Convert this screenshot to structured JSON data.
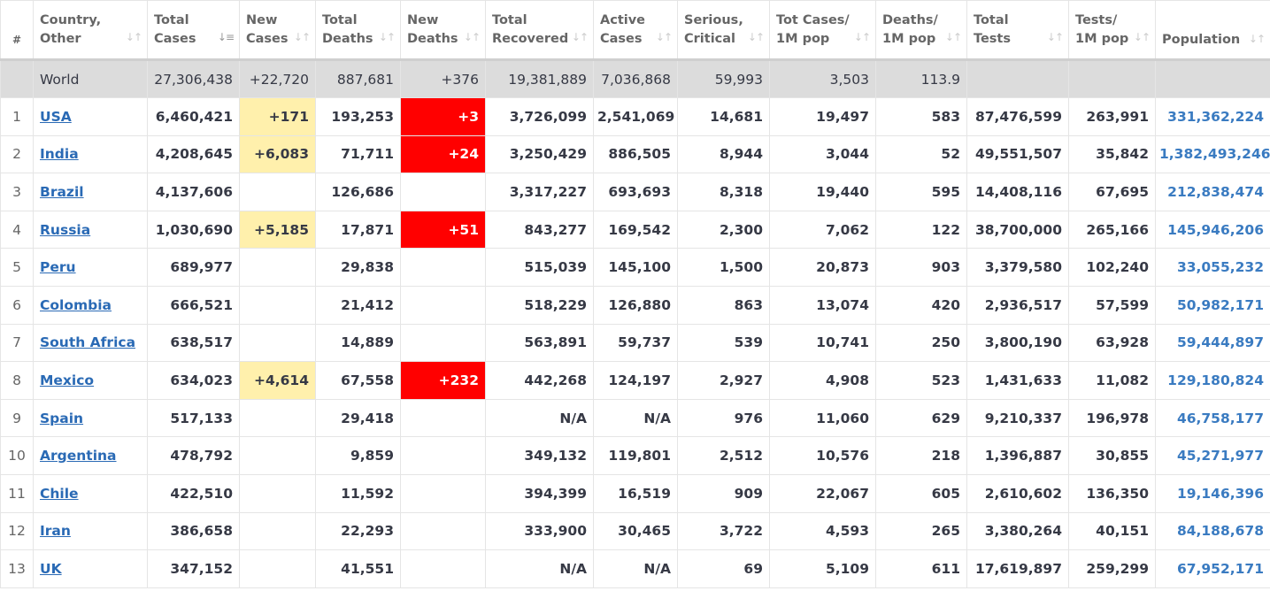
{
  "headers": {
    "num": "#",
    "country": [
      "Country,",
      "Other"
    ],
    "total_cases": [
      "Total",
      "Cases"
    ],
    "new_cases": [
      "New",
      "Cases"
    ],
    "total_deaths": [
      "Total",
      "Deaths"
    ],
    "new_deaths": [
      "New",
      "Deaths"
    ],
    "total_recovered": [
      "Total",
      "Recovered"
    ],
    "active_cases": [
      "Active",
      "Cases"
    ],
    "serious": [
      "Serious,",
      "Critical"
    ],
    "tot_cases_1m": [
      "Tot Cases/",
      "1M pop"
    ],
    "deaths_1m": [
      "Deaths/",
      "1M pop"
    ],
    "total_tests": [
      "Total",
      "Tests"
    ],
    "tests_1m": [
      "Tests/",
      "1M pop"
    ],
    "population": [
      "Population",
      ""
    ]
  },
  "world": {
    "country": "World",
    "total_cases": "27,306,438",
    "new_cases": "+22,720",
    "total_deaths": "887,681",
    "new_deaths": "+376",
    "total_recovered": "19,381,889",
    "active_cases": "7,036,868",
    "serious": "59,993",
    "tot_cases_1m": "3,503",
    "deaths_1m": "113.9",
    "total_tests": "",
    "tests_1m": "",
    "population": ""
  },
  "rows": [
    {
      "rank": "1",
      "country": "USA",
      "total_cases": "6,460,421",
      "new_cases": "+171",
      "total_deaths": "193,253",
      "new_deaths": "+3",
      "total_recovered": "3,726,099",
      "active_cases": "2,541,069",
      "serious": "14,681",
      "tot_cases_1m": "19,497",
      "deaths_1m": "583",
      "total_tests": "87,476,599",
      "tests_1m": "263,991",
      "population": "331,362,224"
    },
    {
      "rank": "2",
      "country": "India",
      "total_cases": "4,208,645",
      "new_cases": "+6,083",
      "total_deaths": "71,711",
      "new_deaths": "+24",
      "total_recovered": "3,250,429",
      "active_cases": "886,505",
      "serious": "8,944",
      "tot_cases_1m": "3,044",
      "deaths_1m": "52",
      "total_tests": "49,551,507",
      "tests_1m": "35,842",
      "population": "1,382,493,246"
    },
    {
      "rank": "3",
      "country": "Brazil",
      "total_cases": "4,137,606",
      "new_cases": "",
      "total_deaths": "126,686",
      "new_deaths": "",
      "total_recovered": "3,317,227",
      "active_cases": "693,693",
      "serious": "8,318",
      "tot_cases_1m": "19,440",
      "deaths_1m": "595",
      "total_tests": "14,408,116",
      "tests_1m": "67,695",
      "population": "212,838,474"
    },
    {
      "rank": "4",
      "country": "Russia",
      "total_cases": "1,030,690",
      "new_cases": "+5,185",
      "total_deaths": "17,871",
      "new_deaths": "+51",
      "total_recovered": "843,277",
      "active_cases": "169,542",
      "serious": "2,300",
      "tot_cases_1m": "7,062",
      "deaths_1m": "122",
      "total_tests": "38,700,000",
      "tests_1m": "265,166",
      "population": "145,946,206"
    },
    {
      "rank": "5",
      "country": "Peru",
      "total_cases": "689,977",
      "new_cases": "",
      "total_deaths": "29,838",
      "new_deaths": "",
      "total_recovered": "515,039",
      "active_cases": "145,100",
      "serious": "1,500",
      "tot_cases_1m": "20,873",
      "deaths_1m": "903",
      "total_tests": "3,379,580",
      "tests_1m": "102,240",
      "population": "33,055,232"
    },
    {
      "rank": "6",
      "country": "Colombia",
      "total_cases": "666,521",
      "new_cases": "",
      "total_deaths": "21,412",
      "new_deaths": "",
      "total_recovered": "518,229",
      "active_cases": "126,880",
      "serious": "863",
      "tot_cases_1m": "13,074",
      "deaths_1m": "420",
      "total_tests": "2,936,517",
      "tests_1m": "57,599",
      "population": "50,982,171"
    },
    {
      "rank": "7",
      "country": "South Africa",
      "total_cases": "638,517",
      "new_cases": "",
      "total_deaths": "14,889",
      "new_deaths": "",
      "total_recovered": "563,891",
      "active_cases": "59,737",
      "serious": "539",
      "tot_cases_1m": "10,741",
      "deaths_1m": "250",
      "total_tests": "3,800,190",
      "tests_1m": "63,928",
      "population": "59,444,897"
    },
    {
      "rank": "8",
      "country": "Mexico",
      "total_cases": "634,023",
      "new_cases": "+4,614",
      "total_deaths": "67,558",
      "new_deaths": "+232",
      "total_recovered": "442,268",
      "active_cases": "124,197",
      "serious": "2,927",
      "tot_cases_1m": "4,908",
      "deaths_1m": "523",
      "total_tests": "1,431,633",
      "tests_1m": "11,082",
      "population": "129,180,824"
    },
    {
      "rank": "9",
      "country": "Spain",
      "total_cases": "517,133",
      "new_cases": "",
      "total_deaths": "29,418",
      "new_deaths": "",
      "total_recovered": "N/A",
      "active_cases": "N/A",
      "serious": "976",
      "tot_cases_1m": "11,060",
      "deaths_1m": "629",
      "total_tests": "9,210,337",
      "tests_1m": "196,978",
      "population": "46,758,177"
    },
    {
      "rank": "10",
      "country": "Argentina",
      "total_cases": "478,792",
      "new_cases": "",
      "total_deaths": "9,859",
      "new_deaths": "",
      "total_recovered": "349,132",
      "active_cases": "119,801",
      "serious": "2,512",
      "tot_cases_1m": "10,576",
      "deaths_1m": "218",
      "total_tests": "1,396,887",
      "tests_1m": "30,855",
      "population": "45,271,977"
    },
    {
      "rank": "11",
      "country": "Chile",
      "total_cases": "422,510",
      "new_cases": "",
      "total_deaths": "11,592",
      "new_deaths": "",
      "total_recovered": "394,399",
      "active_cases": "16,519",
      "serious": "909",
      "tot_cases_1m": "22,067",
      "deaths_1m": "605",
      "total_tests": "2,610,602",
      "tests_1m": "136,350",
      "population": "19,146,396"
    },
    {
      "rank": "12",
      "country": "Iran",
      "total_cases": "386,658",
      "new_cases": "",
      "total_deaths": "22,293",
      "new_deaths": "",
      "total_recovered": "333,900",
      "active_cases": "30,465",
      "serious": "3,722",
      "tot_cases_1m": "4,593",
      "deaths_1m": "265",
      "total_tests": "3,380,264",
      "tests_1m": "40,151",
      "population": "84,188,678"
    },
    {
      "rank": "13",
      "country": "UK",
      "total_cases": "347,152",
      "new_cases": "",
      "total_deaths": "41,551",
      "new_deaths": "",
      "total_recovered": "N/A",
      "active_cases": "N/A",
      "serious": "69",
      "tot_cases_1m": "5,109",
      "deaths_1m": "611",
      "total_tests": "17,619,897",
      "tests_1m": "259,299",
      "population": "67,952,171"
    }
  ],
  "colors": {
    "new_cases_highlight": "#fff0ac",
    "new_deaths_highlight": "#ff0000",
    "world_row_bg": "#dcdcdc",
    "link": "#2a6ab5",
    "population_text": "#3a7bc1"
  },
  "icons": {
    "sort": "sort-icon",
    "sort_active": "sort-desc-icon"
  }
}
